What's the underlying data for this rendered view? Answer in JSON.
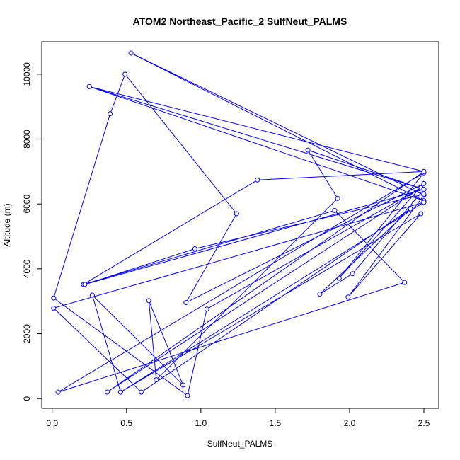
{
  "chart_data": {
    "type": "line",
    "title": "ATOM2 Northeast_Pacific_2 SulfNeut_PALMS",
    "xlabel": "SulfNeut_PALMS",
    "ylabel": "Altitude (m)",
    "xlim": [
      -0.07,
      2.6
    ],
    "ylim": [
      -300,
      11000
    ],
    "x_ticks": [
      0.0,
      0.5,
      1.0,
      1.5,
      2.0,
      2.5
    ],
    "x_tick_labels": [
      "0.0",
      "0.5",
      "1.0",
      "1.5",
      "2.0",
      "2.5"
    ],
    "y_ticks": [
      0,
      2000,
      4000,
      6000,
      8000,
      10000
    ],
    "y_tick_labels": [
      "0",
      "2000",
      "4000",
      "6000",
      "8000",
      "10000"
    ],
    "grid": false,
    "legend": "none",
    "color": "#0000ff",
    "series": [
      {
        "points": [
          [
            0.46,
            200
          ],
          [
            2.48,
            5700
          ],
          [
            1.99,
            3130
          ],
          [
            2.5,
            6270
          ],
          [
            0.53,
            10650
          ],
          [
            2.5,
            6100
          ],
          [
            0.25,
            9620
          ],
          [
            2.5,
            7000
          ],
          [
            0.37,
            200
          ],
          [
            2.48,
            6500
          ],
          [
            1.04,
            2760
          ],
          [
            0.91,
            90
          ],
          [
            0.01,
            3100
          ],
          [
            0.39,
            8780
          ],
          [
            0.49,
            10000
          ],
          [
            1.24,
            5700
          ],
          [
            0.9,
            2960
          ],
          [
            2.5,
            6630
          ],
          [
            1.93,
            3710
          ],
          [
            2.5,
            6960
          ],
          [
            0.04,
            200
          ],
          [
            2.37,
            3580
          ],
          [
            1.9,
            5800
          ],
          [
            0.21,
            3520
          ],
          [
            1.38,
            6740
          ],
          [
            2.5,
            7000
          ],
          [
            0.25,
            9620
          ],
          [
            2.5,
            6450
          ],
          [
            1.72,
            7660
          ],
          [
            1.92,
            6170
          ],
          [
            0.7,
            580
          ],
          [
            0.65,
            3020
          ],
          [
            0.88,
            420
          ],
          [
            0.27,
            3190
          ],
          [
            0.46,
            200
          ],
          [
            2.5,
            6050
          ],
          [
            0.01,
            2790
          ],
          [
            0.6,
            200
          ],
          [
            2.41,
            5850
          ],
          [
            1.8,
            3220
          ],
          [
            2.02,
            3850
          ],
          [
            2.5,
            6450
          ],
          [
            0.22,
            3520
          ],
          [
            0.96,
            4620
          ],
          [
            2.5,
            6300
          ]
        ]
      }
    ]
  }
}
